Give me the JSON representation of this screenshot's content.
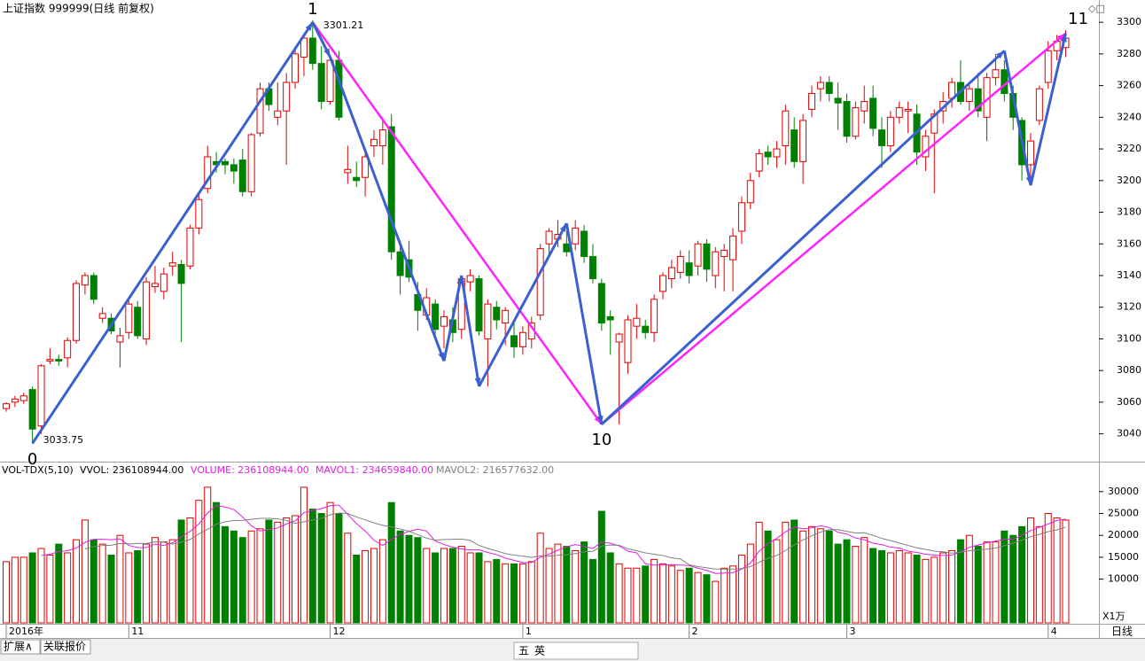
{
  "chart_data": {
    "type": "candlestick",
    "title": "上证指数 999999(日线 前复权)",
    "ylim": [
      3023,
      3304
    ],
    "yticks": [
      3040,
      3060,
      3080,
      3100,
      3120,
      3140,
      3160,
      3180,
      3200,
      3220,
      3240,
      3260,
      3280,
      3300
    ],
    "up_color": "#e00000",
    "down_color": "#008000",
    "candles": [
      [
        3056,
        3060,
        3054,
        3059
      ],
      [
        3060,
        3064,
        3057,
        3062
      ],
      [
        3061,
        3066,
        3059,
        3064
      ],
      [
        3068,
        3070,
        3033.75,
        3043
      ],
      [
        3045,
        3084,
        3040,
        3083
      ],
      [
        3086,
        3094,
        3084,
        3087
      ],
      [
        3087,
        3090,
        3083,
        3086
      ],
      [
        3088,
        3101,
        3082,
        3099
      ],
      [
        3099,
        3137,
        3097,
        3135
      ],
      [
        3134,
        3142,
        3128,
        3140
      ],
      [
        3140,
        3142,
        3122,
        3125
      ],
      [
        3113,
        3120,
        3110,
        3116
      ],
      [
        3113,
        3116,
        3103,
        3105
      ],
      [
        3098,
        3107,
        3082,
        3102
      ],
      [
        3104,
        3126,
        3100,
        3122
      ],
      [
        3120,
        3124,
        3100,
        3102
      ],
      [
        3100,
        3139,
        3096,
        3136
      ],
      [
        3133,
        3146,
        3129,
        3135
      ],
      [
        3130,
        3145,
        3125,
        3141
      ],
      [
        3146,
        3155,
        3140,
        3148
      ],
      [
        3147,
        3150,
        3098,
        3135
      ],
      [
        3146,
        3172,
        3144,
        3170
      ],
      [
        3170,
        3193,
        3166,
        3188
      ],
      [
        3195,
        3222,
        3192,
        3215
      ],
      [
        3212,
        3218,
        3205,
        3210
      ],
      [
        3212,
        3214,
        3204,
        3210
      ],
      [
        3210,
        3214,
        3198,
        3206
      ],
      [
        3213,
        3220,
        3190,
        3193
      ],
      [
        3193,
        3230,
        3190,
        3229
      ],
      [
        3230,
        3262,
        3228,
        3258
      ],
      [
        3258,
        3262,
        3244,
        3248
      ],
      [
        3240,
        3262,
        3235,
        3244
      ],
      [
        3244,
        3268,
        3210,
        3262
      ],
      [
        3262,
        3284,
        3258,
        3280
      ],
      [
        3278,
        3292,
        3266,
        3290
      ],
      [
        3290,
        3301.21,
        3270,
        3274
      ],
      [
        3274,
        3285,
        3245,
        3250
      ],
      [
        3250,
        3278,
        3248,
        3276
      ],
      [
        3276,
        3282,
        3238,
        3240
      ],
      [
        3205,
        3222,
        3198,
        3207
      ],
      [
        3202,
        3212,
        3196,
        3200
      ],
      [
        3202,
        3220,
        3190,
        3215
      ],
      [
        3222,
        3232,
        3215,
        3226
      ],
      [
        3222,
        3240,
        3210,
        3232
      ],
      [
        3234,
        3242,
        3150,
        3155
      ],
      [
        3155,
        3162,
        3128,
        3140
      ],
      [
        3150,
        3162,
        3136,
        3139
      ],
      [
        3128,
        3136,
        3105,
        3118
      ],
      [
        3115,
        3132,
        3112,
        3126
      ],
      [
        3122,
        3125,
        3100,
        3106
      ],
      [
        3108,
        3118,
        3094,
        3114
      ],
      [
        3112,
        3120,
        3098,
        3104
      ],
      [
        3106,
        3140,
        3100,
        3138
      ],
      [
        3136,
        3144,
        3130,
        3140
      ],
      [
        3138,
        3140,
        3102,
        3105
      ],
      [
        3100,
        3125,
        3070,
        3122
      ],
      [
        3120,
        3124,
        3106,
        3112
      ],
      [
        3110,
        3120,
        3096,
        3118
      ],
      [
        3102,
        3110,
        3088,
        3095
      ],
      [
        3095,
        3108,
        3090,
        3104
      ],
      [
        3100,
        3114,
        3094,
        3110
      ],
      [
        3115,
        3160,
        3112,
        3157
      ],
      [
        3160,
        3170,
        3152,
        3168
      ],
      [
        3163,
        3175,
        3158,
        3166
      ],
      [
        3160,
        3168,
        3152,
        3155
      ],
      [
        3160,
        3175,
        3156,
        3170
      ],
      [
        3168,
        3172,
        3148,
        3152
      ],
      [
        3152,
        3160,
        3135,
        3138
      ],
      [
        3135,
        3138,
        3105,
        3110
      ],
      [
        3114,
        3118,
        3090,
        3112
      ],
      [
        3098,
        3104,
        3046,
        3103
      ],
      [
        3085,
        3115,
        3078,
        3112
      ],
      [
        3108,
        3122,
        3100,
        3113
      ],
      [
        3108,
        3112,
        3100,
        3104
      ],
      [
        3104,
        3128,
        3098,
        3125
      ],
      [
        3130,
        3142,
        3125,
        3140
      ],
      [
        3138,
        3150,
        3132,
        3145
      ],
      [
        3142,
        3156,
        3138,
        3152
      ],
      [
        3148,
        3156,
        3135,
        3140
      ],
      [
        3146,
        3162,
        3140,
        3160
      ],
      [
        3160,
        3163,
        3136,
        3144
      ],
      [
        3140,
        3158,
        3132,
        3155
      ],
      [
        3152,
        3160,
        3130,
        3156
      ],
      [
        3150,
        3170,
        3130,
        3165
      ],
      [
        3168,
        3190,
        3160,
        3186
      ],
      [
        3186,
        3205,
        3182,
        3200
      ],
      [
        3206,
        3220,
        3202,
        3217
      ],
      [
        3218,
        3222,
        3210,
        3215
      ],
      [
        3215,
        3225,
        3208,
        3220
      ],
      [
        3222,
        3248,
        3210,
        3244
      ],
      [
        3232,
        3240,
        3208,
        3212
      ],
      [
        3212,
        3242,
        3198,
        3238
      ],
      [
        3245,
        3260,
        3240,
        3255
      ],
      [
        3258,
        3266,
        3250,
        3262
      ],
      [
        3262,
        3266,
        3250,
        3255
      ],
      [
        3252,
        3262,
        3232,
        3249
      ],
      [
        3250,
        3255,
        3224,
        3228
      ],
      [
        3228,
        3250,
        3226,
        3246
      ],
      [
        3244,
        3260,
        3236,
        3250
      ],
      [
        3252,
        3260,
        3228,
        3233
      ],
      [
        3232,
        3240,
        3208,
        3222
      ],
      [
        3222,
        3244,
        3218,
        3240
      ],
      [
        3240,
        3250,
        3236,
        3246
      ],
      [
        3244,
        3250,
        3230,
        3245
      ],
      [
        3242,
        3248,
        3210,
        3218
      ],
      [
        3215,
        3232,
        3206,
        3228
      ],
      [
        3230,
        3245,
        3192,
        3242
      ],
      [
        3244,
        3256,
        3236,
        3250
      ],
      [
        3252,
        3265,
        3246,
        3262
      ],
      [
        3262,
        3276,
        3248,
        3250
      ],
      [
        3250,
        3262,
        3244,
        3258
      ],
      [
        3258,
        3268,
        3240,
        3244
      ],
      [
        3240,
        3268,
        3225,
        3265
      ],
      [
        3265,
        3280,
        3260,
        3270
      ],
      [
        3270,
        3276,
        3250,
        3255
      ],
      [
        3255,
        3260,
        3232,
        3240
      ],
      [
        3238,
        3240,
        3200,
        3210
      ],
      [
        3210,
        3230,
        3200,
        3225
      ],
      [
        3238,
        3260,
        3235,
        3258
      ],
      [
        3262,
        3288,
        3258,
        3282
      ],
      [
        3282,
        3292,
        3276,
        3288
      ],
      [
        3284,
        3295,
        3278,
        3290
      ]
    ],
    "x_labels": [
      {
        "index": 0,
        "label": "2016年"
      },
      {
        "index": 14,
        "label": "11"
      },
      {
        "index": 37,
        "label": "12"
      },
      {
        "index": 59,
        "label": "1"
      },
      {
        "index": 78,
        "label": "2"
      },
      {
        "index": 96,
        "label": "3"
      },
      {
        "index": 119,
        "label": "4"
      }
    ],
    "annotations": [
      {
        "index": 35,
        "price": 3301.21
      },
      {
        "index": 3,
        "price": 3033.75
      }
    ],
    "wave_labels": [
      {
        "label": "0",
        "index": 3,
        "price": 3033.75
      },
      {
        "label": "1",
        "index": 35,
        "price": 3301.21
      },
      {
        "label": "10",
        "index": 68,
        "price": 3046
      },
      {
        "label": "11",
        "index": 121,
        "price": 3295
      }
    ],
    "blue_path": {
      "color": "#3a5fd0",
      "points": [
        [
          3,
          3034
        ],
        [
          35,
          3300
        ],
        [
          37,
          3278
        ],
        [
          50,
          3086
        ],
        [
          52,
          3140
        ],
        [
          54,
          3070
        ],
        [
          64,
          3173
        ],
        [
          68,
          3046
        ],
        [
          114,
          3282
        ],
        [
          117,
          3197
        ],
        [
          121,
          3293
        ]
      ]
    },
    "pink_path": {
      "color": "#ff22ff",
      "points": [
        [
          35,
          3300
        ],
        [
          68,
          3046
        ],
        [
          121,
          3293
        ]
      ]
    },
    "volume": {
      "header": "VOL-TDX(5,10)",
      "vvol": "VVOL: 236108944.00",
      "volume": "VOLUME: 236108944.00",
      "mavol1": "MAVOL1: 234659840.00",
      "mavol2": "MAVOL2: 216577632.00",
      "unit": "X1万",
      "ylim": [
        0,
        33000
      ],
      "yticks": [
        10000,
        15000,
        20000,
        25000,
        30000
      ],
      "values": [
        14000,
        15000,
        15000,
        16000,
        17000,
        15500,
        18000,
        16000,
        19000,
        23500,
        19000,
        18000,
        15500,
        20000,
        16000,
        16500,
        18000,
        19500,
        18500,
        19000,
        23500,
        24000,
        28000,
        31000,
        27500,
        22000,
        21000,
        19500,
        21000,
        21500,
        23500,
        23000,
        24000,
        24500,
        31000,
        26000,
        25000,
        27500,
        25000,
        20500,
        15500,
        16500,
        17000,
        19000,
        27500,
        21000,
        20000,
        19500,
        17000,
        16000,
        17000,
        17000,
        17500,
        16000,
        16000,
        14000,
        14500,
        13500,
        13500,
        13500,
        14000,
        20500,
        17000,
        18000,
        17500,
        16500,
        18500,
        14500,
        25500,
        16000,
        13500,
        12500,
        12500,
        13000,
        14500,
        13500,
        13000,
        12000,
        12500,
        11500,
        11000,
        9500,
        12500,
        13000,
        15500,
        18000,
        23000,
        21000,
        19000,
        23000,
        23500,
        21000,
        22000,
        21500,
        21000,
        18000,
        19000,
        17500,
        19500,
        17000,
        16500,
        16000,
        16500,
        16000,
        15500,
        14500,
        15000,
        16000,
        16500,
        19000,
        20000,
        17500,
        18500,
        18500,
        21000,
        20000,
        22000,
        24000,
        22000,
        25000,
        24000,
        23500
      ]
    },
    "period": "日线",
    "bottom_tabs": [
      "扩展∧",
      "关联报价"
    ],
    "toolbar": [
      "五",
      "英"
    ]
  }
}
